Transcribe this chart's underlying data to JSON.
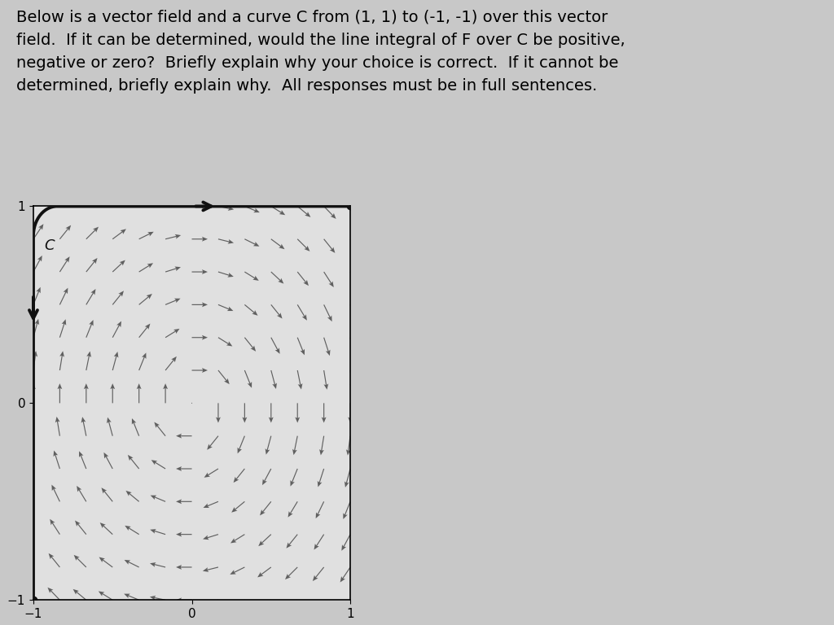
{
  "title_text": "Below is a vector field and a curve C from (1, 1) to (-1, -1) over this vector\nfield.  If it can be determined, would the line integral of F over C be positive,\nnegative or zero?  Briefly explain why your choice is correct.  If it cannot be\ndetermined, briefly explain why.  All responses must be in full sentences.",
  "title_fontsize": 14,
  "bg_color": "#c8c8c8",
  "plot_bg_color": "#e0e0e0",
  "vector_color": "#606060",
  "curve_color": "#111111",
  "grid_nx": 13,
  "grid_ny": 13,
  "xlim": [
    -1.0,
    1.0
  ],
  "ylim": [
    -1.0,
    1.0
  ],
  "xticks": [
    -1,
    0,
    1
  ],
  "yticks": [
    -1,
    0,
    1
  ]
}
